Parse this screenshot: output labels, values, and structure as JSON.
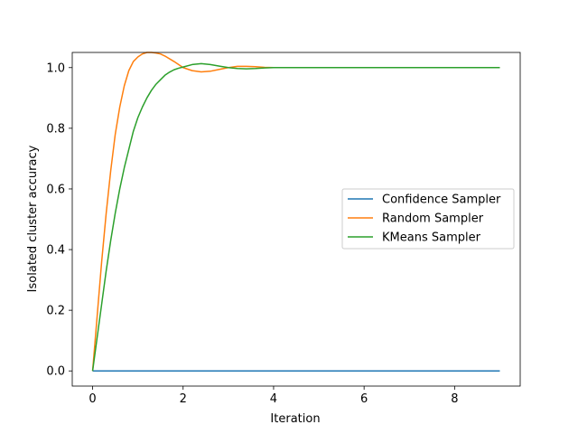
{
  "chart_data": {
    "type": "line",
    "title": "",
    "xlabel": "Iteration",
    "ylabel": "Isolated cluster accuracy",
    "xlim": [
      -0.45,
      9.45
    ],
    "ylim": [
      -0.05,
      1.05
    ],
    "xticks": [
      0,
      2,
      4,
      6,
      8
    ],
    "xtick_labels": [
      "0",
      "2",
      "4",
      "6",
      "8"
    ],
    "yticks": [
      0.0,
      0.2,
      0.4,
      0.6,
      0.8,
      1.0
    ],
    "ytick_labels": [
      "0.0",
      "0.2",
      "0.4",
      "0.6",
      "0.8",
      "1.0"
    ],
    "grid": false,
    "legend_position": "center-right",
    "series": [
      {
        "name": "Confidence Sampler",
        "color": "#1f77b4",
        "x": [
          0,
          1,
          2,
          3,
          4,
          5,
          6,
          7,
          8,
          9
        ],
        "y": [
          0,
          0,
          0,
          0,
          0,
          0,
          0,
          0,
          0,
          0
        ]
      },
      {
        "name": "Random Sampler",
        "color": "#ff7f0e",
        "x": [
          0,
          0.1,
          0.2,
          0.3,
          0.4,
          0.5,
          0.6,
          0.7,
          0.8,
          0.9,
          1.0,
          1.1,
          1.2,
          1.3,
          1.4,
          1.5,
          1.6,
          1.8,
          2.0,
          2.2,
          2.4,
          2.6,
          2.8,
          3.0,
          3.2,
          3.4,
          3.6,
          3.8,
          4.0,
          4.5,
          5.0,
          6.0,
          7.0,
          8.0,
          9.0
        ],
        "y": [
          0,
          0.18,
          0.36,
          0.52,
          0.66,
          0.78,
          0.87,
          0.94,
          0.99,
          1.02,
          1.035,
          1.045,
          1.05,
          1.05,
          1.048,
          1.045,
          1.038,
          1.02,
          1.0,
          0.99,
          0.986,
          0.988,
          0.994,
          1.0,
          1.004,
          1.004,
          1.003,
          1.001,
          1.0,
          1.0,
          1.0,
          1.0,
          1.0,
          1.0,
          1.0
        ]
      },
      {
        "name": "KMeans Sampler",
        "color": "#2ca02c",
        "x": [
          0,
          0.1,
          0.2,
          0.3,
          0.4,
          0.5,
          0.6,
          0.7,
          0.8,
          0.9,
          1.0,
          1.1,
          1.2,
          1.3,
          1.4,
          1.5,
          1.6,
          1.7,
          1.8,
          1.9,
          2.0,
          2.2,
          2.4,
          2.6,
          2.8,
          3.0,
          3.2,
          3.4,
          3.6,
          3.8,
          4.0,
          4.5,
          5.0,
          6.0,
          7.0,
          8.0,
          9.0
        ],
        "y": [
          0,
          0.11,
          0.22,
          0.33,
          0.43,
          0.52,
          0.6,
          0.67,
          0.73,
          0.79,
          0.835,
          0.87,
          0.9,
          0.925,
          0.945,
          0.96,
          0.975,
          0.985,
          0.993,
          0.998,
          1.002,
          1.01,
          1.013,
          1.01,
          1.005,
          1.0,
          0.997,
          0.996,
          0.997,
          0.999,
          1.0,
          1.0,
          1.0,
          1.0,
          1.0,
          1.0,
          1.0
        ]
      }
    ]
  }
}
